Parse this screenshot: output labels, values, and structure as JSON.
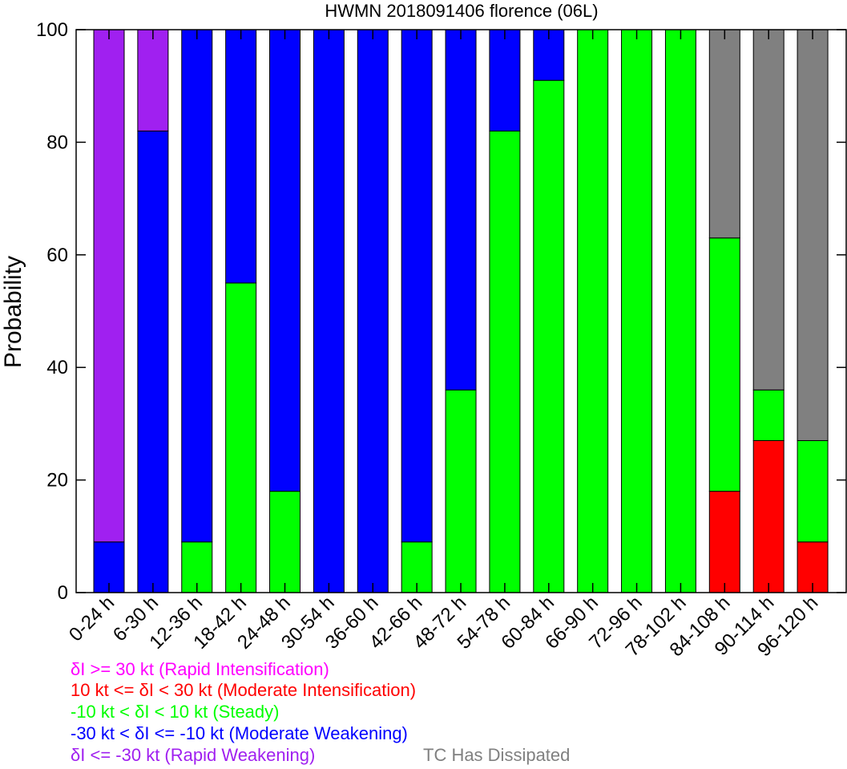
{
  "chart_data": {
    "type": "bar",
    "stacked": true,
    "title": "HWMN 2018091406 florence (06L)",
    "xlabel": "",
    "ylabel": "Probability",
    "ylim": [
      0,
      100
    ],
    "yticks": [
      "0",
      "20",
      "40",
      "60",
      "80",
      "100"
    ],
    "grid": false,
    "categories": [
      "0-24 h",
      "6-30 h",
      "12-36 h",
      "18-42 h",
      "24-48 h",
      "30-54 h",
      "36-60 h",
      "42-66 h",
      "48-72 h",
      "54-78 h",
      "60-84 h",
      "66-90 h",
      "72-96 h",
      "78-102 h",
      "84-108 h",
      "90-114 h",
      "96-120 h"
    ],
    "series": [
      {
        "name": "10 kt <= δI < 30 kt (Moderate Intensification)",
        "color": "#ff0000",
        "values": [
          0,
          0,
          0,
          0,
          0,
          0,
          0,
          0,
          0,
          0,
          0,
          0,
          0,
          0,
          18,
          27,
          9
        ]
      },
      {
        "name": "-10 kt < δI < 10 kt (Steady)",
        "color": "#00ff00",
        "values": [
          0,
          0,
          9,
          55,
          18,
          0,
          0,
          9,
          36,
          82,
          91,
          100,
          100,
          100,
          45,
          9,
          18
        ]
      },
      {
        "name": "-30 kt < δI <= -10 kt (Moderate Weakening)",
        "color": "#0000ff",
        "values": [
          9,
          82,
          91,
          45,
          82,
          100,
          100,
          91,
          64,
          18,
          9,
          0,
          0,
          0,
          0,
          0,
          0
        ]
      },
      {
        "name": "δI <= -30 kt (Rapid Weakening)",
        "color": "#a020f0",
        "values": [
          91,
          18,
          0,
          0,
          0,
          0,
          0,
          0,
          0,
          0,
          0,
          0,
          0,
          0,
          0,
          0,
          0
        ]
      },
      {
        "name": "TC Has Dissipated",
        "color": "#808080",
        "values": [
          0,
          0,
          0,
          0,
          0,
          0,
          0,
          0,
          0,
          0,
          0,
          0,
          0,
          0,
          37,
          64,
          73
        ]
      }
    ]
  },
  "legend": {
    "entries": [
      {
        "text": "δI >= 30 kt (Rapid Intensification)",
        "color": "#ff00ff"
      },
      {
        "text": "10 kt <= δI < 30 kt (Moderate Intensification)",
        "color": "#ff0000"
      },
      {
        "text": "-10 kt < δI < 10 kt (Steady)",
        "color": "#00ff00"
      },
      {
        "text": "-30 kt < δI <= -10 kt (Moderate Weakening)",
        "color": "#0000ff"
      },
      {
        "text": "δI <= -30 kt (Rapid Weakening)",
        "color": "#a020f0"
      },
      {
        "text": "TC Has Dissipated",
        "color": "#808080"
      }
    ]
  }
}
